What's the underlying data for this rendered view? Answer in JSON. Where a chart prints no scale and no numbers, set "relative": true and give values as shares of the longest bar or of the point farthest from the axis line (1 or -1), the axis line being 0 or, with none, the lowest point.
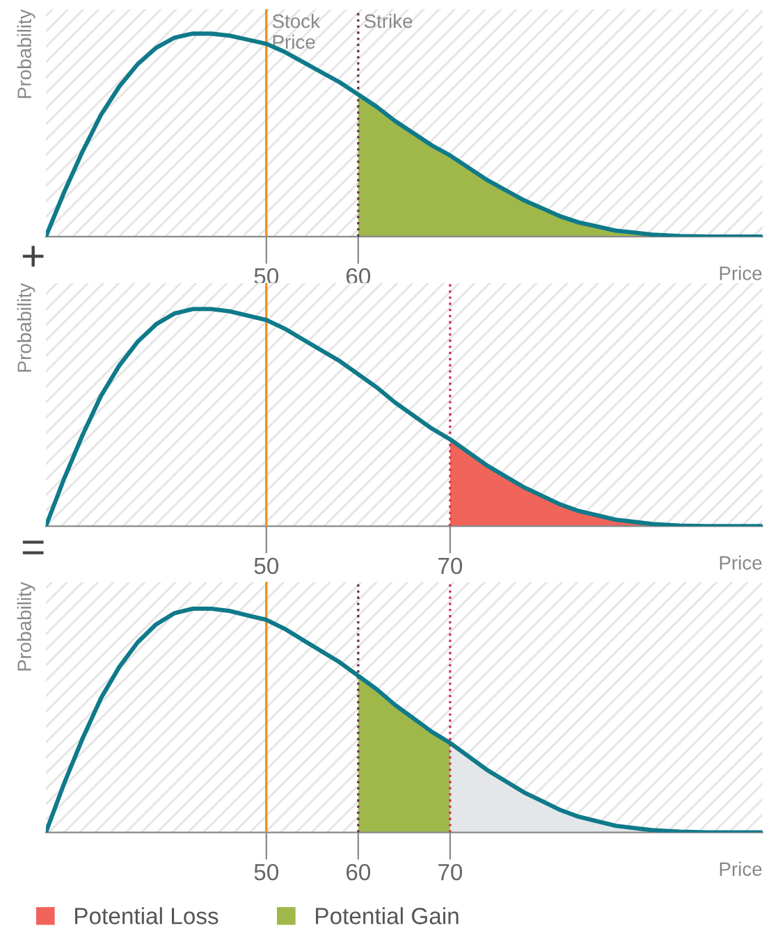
{
  "chart_data": [
    {
      "type": "line",
      "relative": true,
      "ylabel": "Probability",
      "xlabel": "Price",
      "xlim": [
        26,
        104
      ],
      "xticks": [
        50,
        60
      ],
      "annotations": [
        "+"
      ],
      "series": [
        {
          "type": "line",
          "color": "#0f7a8a",
          "x": [
            26,
            28,
            30,
            32,
            34,
            36,
            38,
            40,
            42,
            44,
            46,
            48,
            50,
            52,
            54,
            56,
            58,
            60,
            62,
            64,
            66,
            68,
            70,
            72,
            74,
            76,
            78,
            80,
            82,
            84,
            86,
            88,
            90,
            92,
            95,
            98,
            104
          ],
          "values": [
            0,
            0.22,
            0.42,
            0.6,
            0.74,
            0.85,
            0.93,
            0.98,
            1.0,
            1.0,
            0.99,
            0.97,
            0.95,
            0.91,
            0.86,
            0.81,
            0.76,
            0.7,
            0.64,
            0.57,
            0.51,
            0.45,
            0.4,
            0.34,
            0.28,
            0.23,
            0.18,
            0.14,
            0.1,
            0.07,
            0.05,
            0.03,
            0.02,
            0.01,
            0.003,
            0,
            0
          ]
        },
        {
          "type": "area",
          "name": "Potential Gain",
          "color": "#a0b84a",
          "x": [
            60,
            62,
            64,
            66,
            68,
            70,
            72,
            74,
            76,
            78,
            80,
            82,
            84,
            86,
            88,
            90,
            92,
            95,
            98
          ],
          "values": [
            0.7,
            0.64,
            0.57,
            0.51,
            0.45,
            0.4,
            0.34,
            0.28,
            0.23,
            0.18,
            0.14,
            0.1,
            0.07,
            0.05,
            0.03,
            0.02,
            0.01,
            0.003,
            0
          ]
        }
      ],
      "ref_lines": [
        {
          "axis": "x",
          "value": 50,
          "label": "Stock Price",
          "color": "#f0901e",
          "line_style": "solid"
        },
        {
          "axis": "x",
          "value": 60,
          "label": "Strike",
          "color": "#6a2f5a",
          "line_style": "dotted"
        }
      ]
    },
    {
      "type": "line",
      "relative": true,
      "ylabel": "Probability",
      "xlabel": "Price",
      "xlim": [
        26,
        104
      ],
      "xticks": [
        50,
        70
      ],
      "annotations": [
        "="
      ],
      "series": [
        {
          "type": "line",
          "color": "#0f7a8a",
          "x": [
            26,
            28,
            30,
            32,
            34,
            36,
            38,
            40,
            42,
            44,
            46,
            48,
            50,
            52,
            54,
            56,
            58,
            60,
            62,
            64,
            66,
            68,
            70,
            72,
            74,
            76,
            78,
            80,
            82,
            84,
            86,
            88,
            90,
            92,
            95,
            98,
            104
          ],
          "values": [
            0,
            0.22,
            0.42,
            0.6,
            0.74,
            0.85,
            0.93,
            0.98,
            1.0,
            1.0,
            0.99,
            0.97,
            0.95,
            0.91,
            0.86,
            0.81,
            0.76,
            0.7,
            0.64,
            0.57,
            0.51,
            0.45,
            0.4,
            0.34,
            0.28,
            0.23,
            0.18,
            0.14,
            0.1,
            0.07,
            0.05,
            0.03,
            0.02,
            0.01,
            0.003,
            0,
            0
          ]
        },
        {
          "type": "area",
          "name": "Potential Loss",
          "color": "#f0645a",
          "x": [
            70,
            72,
            74,
            76,
            78,
            80,
            82,
            84,
            86,
            88,
            90,
            92,
            95,
            98
          ],
          "values": [
            0.4,
            0.34,
            0.28,
            0.23,
            0.18,
            0.14,
            0.1,
            0.07,
            0.05,
            0.03,
            0.02,
            0.01,
            0.003,
            0
          ]
        }
      ],
      "ref_lines": [
        {
          "axis": "x",
          "value": 50,
          "color": "#f0901e",
          "line_style": "solid"
        },
        {
          "axis": "x",
          "value": 70,
          "color": "#d0305a",
          "line_style": "dotted"
        }
      ]
    },
    {
      "type": "line",
      "relative": true,
      "ylabel": "Probability",
      "xlabel": "Price",
      "xlim": [
        26,
        104
      ],
      "xticks": [
        50,
        60,
        70
      ],
      "legend": "bottom",
      "series": [
        {
          "type": "line",
          "color": "#0f7a8a",
          "x": [
            26,
            28,
            30,
            32,
            34,
            36,
            38,
            40,
            42,
            44,
            46,
            48,
            50,
            52,
            54,
            56,
            58,
            60,
            62,
            64,
            66,
            68,
            70,
            72,
            74,
            76,
            78,
            80,
            82,
            84,
            86,
            88,
            90,
            92,
            95,
            98,
            104
          ],
          "values": [
            0,
            0.22,
            0.42,
            0.6,
            0.74,
            0.85,
            0.93,
            0.98,
            1.0,
            1.0,
            0.99,
            0.97,
            0.95,
            0.91,
            0.86,
            0.81,
            0.76,
            0.7,
            0.64,
            0.57,
            0.51,
            0.45,
            0.4,
            0.34,
            0.28,
            0.23,
            0.18,
            0.14,
            0.1,
            0.07,
            0.05,
            0.03,
            0.02,
            0.01,
            0.003,
            0,
            0
          ]
        },
        {
          "type": "area",
          "name": "Potential Gain",
          "color": "#a0b84a",
          "x": [
            60,
            62,
            64,
            66,
            68,
            70
          ],
          "values": [
            0.7,
            0.64,
            0.57,
            0.51,
            0.45,
            0.4
          ]
        },
        {
          "type": "area",
          "color": "#e4e7ea",
          "x": [
            70,
            72,
            74,
            76,
            78,
            80,
            82,
            84,
            86,
            88,
            90,
            92,
            95,
            98
          ],
          "values": [
            0.4,
            0.34,
            0.28,
            0.23,
            0.18,
            0.14,
            0.1,
            0.07,
            0.05,
            0.03,
            0.02,
            0.01,
            0.003,
            0
          ]
        }
      ],
      "ref_lines": [
        {
          "axis": "x",
          "value": 50,
          "color": "#f0901e",
          "line_style": "solid"
        },
        {
          "axis": "x",
          "value": 60,
          "color": "#6a2f5a",
          "line_style": "dotted"
        },
        {
          "axis": "x",
          "value": 70,
          "color": "#d0305a",
          "line_style": "dotted"
        }
      ]
    }
  ]
}
